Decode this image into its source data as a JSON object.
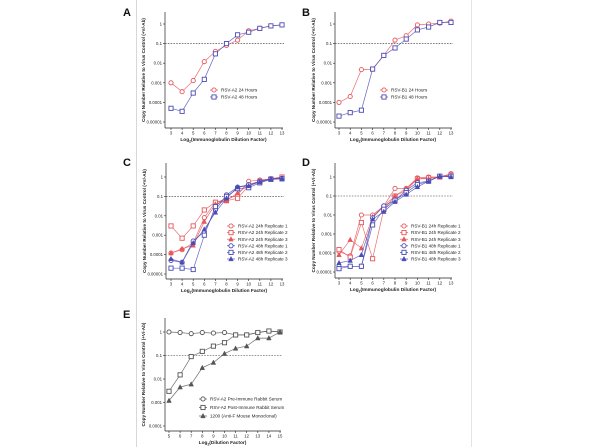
{
  "colors": {
    "red": "#e8565a",
    "blue": "#4b4bb5",
    "gray": "#555555"
  },
  "chart_data": [
    {
      "panel": "A",
      "type": "line",
      "yscale": "log",
      "xlabel": "Log2(Immunoglobulin Dilution Factor)",
      "ylabel": "Copy Number Relative to Virus Control (+V/-Ab)",
      "x": [
        3,
        4,
        5,
        6,
        7,
        8,
        9,
        10,
        11,
        12,
        13
      ],
      "xticks": [
        "3",
        "4",
        "5",
        "6",
        "7",
        "8",
        "9",
        "10",
        "11",
        "12",
        "13"
      ],
      "yticks": [
        "1",
        "0.1",
        "0.01",
        "0.001",
        "0.0001",
        "0.00001"
      ],
      "ylim": [
        1e-05,
        1
      ],
      "reference_line": 0.1,
      "legend": "center-right",
      "series": [
        {
          "name": "RSV-A2 24 Hours",
          "color": "red",
          "marker": "circle",
          "values": [
            0.001,
            0.00035,
            0.0013,
            0.012,
            0.04,
            0.08,
            0.15,
            0.45,
            0.6,
            0.8,
            0.9
          ]
        },
        {
          "name": "RSV-A2 48 Hours",
          "color": "blue",
          "marker": "square",
          "values": [
            5e-05,
            3.5e-05,
            0.0003,
            0.0015,
            0.03,
            0.1,
            0.28,
            0.38,
            0.6,
            0.8,
            0.9
          ]
        }
      ]
    },
    {
      "panel": "B",
      "type": "line",
      "yscale": "log",
      "xlabel": "Log2(Immunoglobulin Dilution Factor)",
      "ylabel": "Copy Number Relative to Virus Control (+V/-Ab)",
      "x": [
        3,
        4,
        5,
        6,
        7,
        8,
        9,
        10,
        11,
        12,
        13
      ],
      "xticks": [
        "3",
        "4",
        "5",
        "6",
        "7",
        "8",
        "9",
        "10",
        "11",
        "12",
        "13"
      ],
      "yticks": [
        "1",
        "0.1",
        "0.01",
        "0.001",
        "0.0001",
        "0.00001"
      ],
      "ylim": [
        1e-05,
        1
      ],
      "reference_line": 0.1,
      "legend": "center-right",
      "series": [
        {
          "name": "RSV-B1 24 Hours",
          "color": "red",
          "marker": "circle",
          "values": [
            0.0001,
            0.0002,
            0.0047,
            0.005,
            0.025,
            0.15,
            0.25,
            0.9,
            1.0,
            1.1,
            1.4
          ]
        },
        {
          "name": "RSV-B1 48 Hours",
          "color": "blue",
          "marker": "square",
          "values": [
            2e-05,
            3e-05,
            4e-05,
            0.005,
            0.025,
            0.06,
            0.17,
            0.5,
            0.7,
            1.2,
            1.2
          ]
        }
      ]
    },
    {
      "panel": "C",
      "type": "line",
      "yscale": "log",
      "xlabel": "Log2(Immunoglobulin Dilution Factor)",
      "ylabel": "Copy Number Relative to Virus Control (+V/-Ab)",
      "x": [
        3,
        4,
        5,
        6,
        7,
        8,
        9,
        10,
        11,
        12,
        13
      ],
      "xticks": [
        "3",
        "4",
        "5",
        "6",
        "7",
        "8",
        "9",
        "10",
        "11",
        "12",
        "13"
      ],
      "yticks": [
        "1",
        "0.1",
        "0.01",
        "0.001",
        "0.0001",
        "0.00001"
      ],
      "ylim": [
        1e-05,
        1
      ],
      "reference_line": 0.1,
      "legend": "center-right",
      "series": [
        {
          "name": "RSV-A2 24h Replicate 1",
          "color": "red",
          "marker": "circle",
          "values": [
            0.00012,
            0.00018,
            0.0004,
            0.008,
            0.05,
            0.07,
            0.12,
            0.6,
            0.7,
            0.8,
            1.0
          ]
        },
        {
          "name": "RSV-A2 24h Replicate 2",
          "color": "red",
          "marker": "square",
          "values": [
            0.003,
            0.0007,
            0.003,
            0.02,
            0.05,
            0.06,
            0.08,
            0.35,
            0.6,
            0.8,
            1.0
          ]
        },
        {
          "name": "RSV-A2 24h Replicate 3",
          "color": "red",
          "marker": "triangle",
          "values": [
            0.00012,
            0.0002,
            0.0003,
            0.005,
            0.04,
            0.06,
            0.15,
            0.4,
            0.6,
            0.8,
            0.9
          ]
        },
        {
          "name": "RSV-A2 48h Replicate 1",
          "color": "blue",
          "marker": "circle",
          "values": [
            5e-05,
            4e-05,
            0.0005,
            0.0015,
            0.02,
            0.12,
            0.3,
            0.4,
            0.6,
            0.8,
            0.85
          ]
        },
        {
          "name": "RSV-A2 48h Replicate 2",
          "color": "blue",
          "marker": "square",
          "values": [
            2e-05,
            2e-05,
            1.7e-05,
            0.001,
            0.03,
            0.1,
            0.25,
            0.28,
            0.5,
            0.75,
            0.8
          ]
        },
        {
          "name": "RSV-A2 48h Replicate 3",
          "color": "blue",
          "marker": "triangle",
          "values": [
            6e-05,
            4e-05,
            0.0004,
            0.002,
            0.015,
            0.08,
            0.3,
            0.35,
            0.55,
            0.8,
            0.85
          ]
        }
      ]
    },
    {
      "panel": "D",
      "type": "line",
      "yscale": "log",
      "xlabel": "Log2(Immunoglobulin Dilution Factor)",
      "ylabel": "Copy Number Relative to Virus Control (+V/-Ab)",
      "x": [
        3,
        4,
        5,
        6,
        7,
        8,
        9,
        10,
        11,
        12,
        13
      ],
      "xticks": [
        "3",
        "4",
        "5",
        "6",
        "7",
        "8",
        "9",
        "10",
        "11",
        "12",
        "13"
      ],
      "yticks": [
        "1",
        "0.1",
        "0.01",
        "0.001",
        "0.0001",
        "0.00001"
      ],
      "ylim": [
        1e-05,
        1
      ],
      "reference_line": 0.1,
      "legend": "center-right",
      "series": [
        {
          "name": "RSV-B1 24h Replicate 1",
          "color": "red",
          "marker": "circle",
          "values": [
            0.00012,
            7e-05,
            0.01,
            0.01,
            0.03,
            0.25,
            0.25,
            0.9,
            1.0,
            1.0,
            1.5
          ]
        },
        {
          "name": "RSV-B1 24h Replicate 2",
          "color": "red",
          "marker": "square",
          "values": [
            0.00015,
            6e-05,
            0.004,
            5e-05,
            0.02,
            0.1,
            0.2,
            0.8,
            0.9,
            1.0,
            1.3
          ]
        },
        {
          "name": "RSV-B1 24h Replicate 3",
          "color": "red",
          "marker": "triangle",
          "values": [
            8e-05,
            0.0005,
            0.00018,
            0.008,
            0.03,
            0.1,
            0.25,
            0.8,
            0.8,
            1.0,
            1.2
          ]
        },
        {
          "name": "RSV-B1 48h Replicate 1",
          "color": "blue",
          "marker": "circle",
          "values": [
            2e-05,
            2e-05,
            2e-05,
            0.007,
            0.03,
            0.06,
            0.2,
            0.5,
            0.6,
            1.1,
            1.1
          ]
        },
        {
          "name": "RSV-B1 48h Replicate 2",
          "color": "blue",
          "marker": "square",
          "values": [
            1.5e-05,
            2e-05,
            2e-05,
            0.003,
            0.02,
            0.06,
            0.15,
            0.4,
            0.6,
            1.1,
            1.1
          ]
        },
        {
          "name": "RSV-B1 48h Replicate 3",
          "color": "blue",
          "marker": "triangle",
          "values": [
            3e-05,
            4e-05,
            8e-05,
            0.006,
            0.015,
            0.05,
            0.12,
            0.3,
            0.6,
            1.1,
            1.0
          ]
        }
      ]
    },
    {
      "panel": "E",
      "type": "line",
      "yscale": "log",
      "xlabel": "Log2(Dilution Factor)",
      "ylabel": "Copy Number Relative to Virus Control (+V/-Ab)",
      "x": [
        5,
        6,
        7,
        8,
        9,
        10,
        11,
        12,
        13,
        14,
        15
      ],
      "xticks": [
        "5",
        "6",
        "7",
        "8",
        "9",
        "10",
        "11",
        "12",
        "13",
        "14",
        "15"
      ],
      "yticks": [
        "1",
        "0.1",
        "0.01",
        "0.001",
        "0.0001"
      ],
      "ylim": [
        0.0001,
        1
      ],
      "reference_line": 0.1,
      "legend": "bottom-right",
      "series": [
        {
          "name": "RSV-A2 Pre-Immune Rabbit Serum",
          "color": "gray",
          "marker": "circle",
          "values": [
            1.0,
            0.95,
            0.85,
            0.95,
            0.9,
            0.95,
            0.75,
            0.75,
            0.95,
            1.1,
            1.0
          ]
        },
        {
          "name": "RSV-A2 Post-Immune Rabbit Serum",
          "color": "gray",
          "marker": "square",
          "values": [
            0.003,
            0.015,
            0.09,
            0.15,
            0.25,
            0.35,
            0.75,
            0.75,
            0.95,
            1.1,
            1.0
          ]
        },
        {
          "name": "1200 (Anti-F Mouse Monoclonal)",
          "color": "gray",
          "marker": "triangle",
          "values": [
            0.0012,
            0.0045,
            0.006,
            0.03,
            0.05,
            0.12,
            0.2,
            0.25,
            0.55,
            0.55,
            1.0
          ]
        }
      ]
    }
  ]
}
